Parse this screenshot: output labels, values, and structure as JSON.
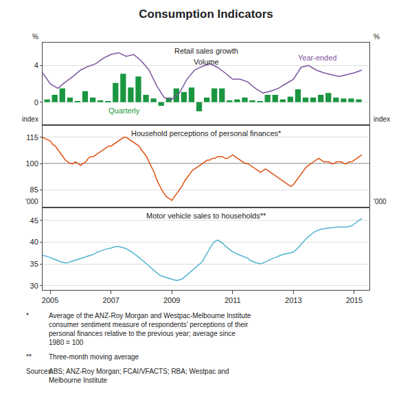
{
  "title": "Consumption Indicators",
  "annotations": [
    {
      "label": "*",
      "text": "Average of the ANZ-Roy Morgan and Westpac-Melbourne Institute\nconsumer sentiment measure of respondents’ perceptions of their\npersonal finances relative to the previous year; average since\n1980 = 100"
    },
    {
      "label": "**",
      "text": "Three-month moving average"
    },
    {
      "label": "Sources:",
      "text": "ABS; ANZ-Roy Morgan; FCAI/VFACTS; RBA; Westpac and\nMelbourne Institute"
    }
  ],
  "chart_data": [
    {
      "type": "bar",
      "title": "Retail sales growth",
      "subtitle": "Volume",
      "ylabel": "%",
      "y2label": "%",
      "xlim": [
        2004.75,
        2015.5
      ],
      "ylim": [
        -2.5,
        6.5
      ],
      "yticks": [
        0,
        4
      ],
      "y2lim": [
        -2.5,
        6.5
      ],
      "y2ticks": [
        0,
        4
      ],
      "grid": true,
      "tick_labels": "y",
      "series": [
        {
          "name": "Quarterly",
          "type": "bar",
          "color": "#1A9641",
          "x": [
            2004.9,
            2005.15,
            2005.4,
            2005.65,
            2005.9,
            2006.15,
            2006.4,
            2006.65,
            2006.9,
            2007.15,
            2007.4,
            2007.65,
            2007.9,
            2008.15,
            2008.4,
            2008.65,
            2008.9,
            2009.15,
            2009.4,
            2009.65,
            2009.9,
            2010.15,
            2010.4,
            2010.65,
            2010.9,
            2011.15,
            2011.4,
            2011.65,
            2011.9,
            2012.15,
            2012.4,
            2012.65,
            2012.9,
            2013.15,
            2013.4,
            2013.65,
            2013.9,
            2014.15,
            2014.4,
            2014.65,
            2014.9,
            2015.15
          ],
          "values": [
            0.3,
            0.8,
            1.5,
            0.5,
            0.1,
            1.2,
            0.5,
            0.2,
            0.1,
            2.1,
            3.1,
            1.6,
            2.8,
            0.8,
            0.4,
            -0.4,
            0.5,
            1.5,
            1.1,
            1.6,
            -1.0,
            0.5,
            1.5,
            1.5,
            0.2,
            0.3,
            0.5,
            0.2,
            0.1,
            0.8,
            0.8,
            0.3,
            0.6,
            1.4,
            0.5,
            0.5,
            0.8,
            1.0,
            0.5,
            0.4,
            0.4,
            0.3
          ]
        },
        {
          "name": "Year-ended",
          "type": "line",
          "color": "#7B54A0",
          "x": [
            2004.75,
            2005.0,
            2005.25,
            2005.5,
            2005.75,
            2006.0,
            2006.25,
            2006.5,
            2006.75,
            2007.0,
            2007.25,
            2007.5,
            2007.75,
            2008.0,
            2008.25,
            2008.5,
            2008.75,
            2009.0,
            2009.25,
            2009.5,
            2009.75,
            2010.0,
            2010.25,
            2010.5,
            2010.75,
            2011.0,
            2011.25,
            2011.5,
            2011.75,
            2012.0,
            2012.25,
            2012.5,
            2012.75,
            2013.0,
            2013.25,
            2013.5,
            2013.75,
            2014.0,
            2014.25,
            2014.5,
            2014.75,
            2015.0,
            2015.25
          ],
          "values": [
            3.2,
            2.0,
            1.5,
            2.2,
            2.8,
            3.5,
            3.9,
            4.2,
            4.8,
            5.2,
            5.4,
            5.0,
            5.2,
            4.5,
            3.5,
            1.8,
            0.5,
            0.3,
            1.0,
            2.5,
            3.5,
            3.9,
            4.2,
            3.8,
            3.2,
            2.5,
            2.5,
            2.2,
            1.5,
            1.0,
            1.2,
            1.5,
            2.0,
            2.5,
            3.8,
            4.0,
            3.5,
            3.2,
            3.0,
            2.8,
            3.0,
            3.2,
            3.5
          ]
        }
      ]
    },
    {
      "type": "line",
      "title": "Household perceptions of personal finances*",
      "ylabel": "index",
      "y2label": "index",
      "xlim": [
        2004.75,
        2015.5
      ],
      "ylim": [
        75,
        122
      ],
      "yticks": [
        85,
        100,
        115
      ],
      "y2lim": [
        75,
        122
      ],
      "y2ticks": [
        85,
        100,
        115
      ],
      "grid": true,
      "tick_labels": "y",
      "reference_lines": [
        {
          "y": 100,
          "color": "#000000"
        }
      ],
      "series": [
        {
          "color": "#E05010",
          "x": [
            2004.75,
            2005.0,
            2005.08,
            2005.17,
            2005.25,
            2005.33,
            2005.42,
            2005.5,
            2005.58,
            2005.67,
            2005.75,
            2005.83,
            2005.92,
            2006.0,
            2006.08,
            2006.17,
            2006.25,
            2006.33,
            2006.42,
            2006.5,
            2006.58,
            2006.67,
            2006.75,
            2006.83,
            2006.92,
            2007.0,
            2007.08,
            2007.17,
            2007.25,
            2007.33,
            2007.42,
            2007.5,
            2007.58,
            2007.67,
            2007.75,
            2007.83,
            2007.92,
            2008.0,
            2008.08,
            2008.17,
            2008.25,
            2008.33,
            2008.42,
            2008.5,
            2008.58,
            2008.67,
            2008.75,
            2008.83,
            2008.92,
            2009.0,
            2009.08,
            2009.17,
            2009.25,
            2009.33,
            2009.42,
            2009.5,
            2009.58,
            2009.67,
            2009.75,
            2009.83,
            2009.92,
            2010.0,
            2010.08,
            2010.17,
            2010.25,
            2010.33,
            2010.42,
            2010.5,
            2010.58,
            2010.67,
            2010.75,
            2010.83,
            2010.92,
            2011.0,
            2011.08,
            2011.17,
            2011.25,
            2011.33,
            2011.42,
            2011.5,
            2011.58,
            2011.67,
            2011.75,
            2011.83,
            2011.92,
            2012.0,
            2012.08,
            2012.17,
            2012.25,
            2012.33,
            2012.42,
            2012.5,
            2012.58,
            2012.67,
            2012.75,
            2012.83,
            2012.92,
            2013.0,
            2013.08,
            2013.17,
            2013.25,
            2013.33,
            2013.42,
            2013.5,
            2013.58,
            2013.67,
            2013.75,
            2013.83,
            2013.92,
            2014.0,
            2014.08,
            2014.17,
            2014.25,
            2014.33,
            2014.42,
            2014.5,
            2014.58,
            2014.67,
            2014.75,
            2014.83,
            2014.92,
            2015.0,
            2015.08,
            2015.17,
            2015.25
          ],
          "values": [
            115,
            113,
            111,
            110,
            108,
            106,
            104,
            102,
            101,
            100,
            100,
            101,
            100,
            99,
            100,
            101,
            103,
            104,
            104,
            105,
            106,
            107,
            108,
            109,
            110,
            110,
            111,
            112,
            113,
            114,
            115,
            115,
            114,
            113,
            112,
            111,
            110,
            108,
            106,
            104,
            101,
            98,
            95,
            91,
            88,
            85,
            83,
            81,
            80,
            79,
            81,
            83,
            85,
            87,
            90,
            92,
            94,
            96,
            97,
            98,
            99,
            100,
            101,
            102,
            102,
            103,
            103,
            104,
            104,
            104,
            103,
            103,
            104,
            105,
            104,
            103,
            102,
            101,
            100,
            100,
            99,
            98,
            97,
            96,
            95,
            96,
            97,
            96,
            95,
            94,
            93,
            92,
            91,
            90,
            89,
            88,
            87,
            88,
            90,
            92,
            94,
            96,
            98,
            99,
            100,
            101,
            102,
            103,
            102,
            101,
            101,
            101,
            100,
            100,
            101,
            101,
            101,
            100,
            100,
            101,
            101,
            102,
            103,
            104,
            105
          ]
        }
      ]
    },
    {
      "type": "line",
      "title": "Motor vehicle sales to households**",
      "ylabel": "'000",
      "y2label": "'000",
      "xlim": [
        2004.75,
        2015.5
      ],
      "xticks": [
        2005,
        2007,
        2009,
        2011,
        2013,
        2015
      ],
      "ylim": [
        29,
        48
      ],
      "yticks": [
        30,
        35,
        40,
        45
      ],
      "y2lim": [
        29,
        48
      ],
      "y2ticks": [
        30,
        35,
        40,
        45
      ],
      "grid": true,
      "series": [
        {
          "color": "#4EB3D3",
          "x": [
            2004.75,
            2005.0,
            2005.08,
            2005.17,
            2005.25,
            2005.33,
            2005.42,
            2005.5,
            2005.58,
            2005.67,
            2005.75,
            2005.83,
            2005.92,
            2006.0,
            2006.08,
            2006.17,
            2006.25,
            2006.33,
            2006.42,
            2006.5,
            2006.58,
            2006.67,
            2006.75,
            2006.83,
            2006.92,
            2007.0,
            2007.08,
            2007.17,
            2007.25,
            2007.33,
            2007.42,
            2007.5,
            2007.58,
            2007.67,
            2007.75,
            2007.83,
            2007.92,
            2008.0,
            2008.08,
            2008.17,
            2008.25,
            2008.33,
            2008.42,
            2008.5,
            2008.58,
            2008.67,
            2008.75,
            2008.83,
            2008.92,
            2009.0,
            2009.08,
            2009.17,
            2009.25,
            2009.33,
            2009.42,
            2009.5,
            2009.58,
            2009.67,
            2009.75,
            2009.83,
            2009.92,
            2010.0,
            2010.08,
            2010.17,
            2010.25,
            2010.33,
            2010.42,
            2010.5,
            2010.58,
            2010.67,
            2010.75,
            2010.83,
            2010.92,
            2011.0,
            2011.08,
            2011.17,
            2011.25,
            2011.33,
            2011.42,
            2011.5,
            2011.58,
            2011.67,
            2011.75,
            2011.83,
            2011.92,
            2012.0,
            2012.08,
            2012.17,
            2012.25,
            2012.33,
            2012.42,
            2012.5,
            2012.58,
            2012.67,
            2012.75,
            2012.83,
            2012.92,
            2013.0,
            2013.08,
            2013.17,
            2013.25,
            2013.33,
            2013.42,
            2013.5,
            2013.58,
            2013.67,
            2013.75,
            2013.83,
            2013.92,
            2014.0,
            2014.08,
            2014.17,
            2014.25,
            2014.33,
            2014.42,
            2014.5,
            2014.58,
            2014.67,
            2014.75,
            2014.83,
            2014.92,
            2015.0,
            2015.08,
            2015.17,
            2015.25
          ],
          "values": [
            37.0,
            36.5,
            36.2,
            36.0,
            35.8,
            35.5,
            35.3,
            35.2,
            35.3,
            35.5,
            35.6,
            35.8,
            36.0,
            36.2,
            36.4,
            36.6,
            36.8,
            37.0,
            37.2,
            37.5,
            37.8,
            38.0,
            38.2,
            38.4,
            38.5,
            38.7,
            38.9,
            39.0,
            39.0,
            38.9,
            38.7,
            38.5,
            38.2,
            37.8,
            37.4,
            37.0,
            36.5,
            36.0,
            35.5,
            35.0,
            34.5,
            34.0,
            33.5,
            33.0,
            32.5,
            32.2,
            32.0,
            31.8,
            31.7,
            31.5,
            31.3,
            31.2,
            31.3,
            31.5,
            32.0,
            32.5,
            33.0,
            33.5,
            34.0,
            34.5,
            35.0,
            35.5,
            36.5,
            37.5,
            38.5,
            39.5,
            40.2,
            40.5,
            40.2,
            39.8,
            39.2,
            38.7,
            38.2,
            37.8,
            37.5,
            37.2,
            37.0,
            36.8,
            36.5,
            36.3,
            35.8,
            35.5,
            35.3,
            35.2,
            35.0,
            35.2,
            35.5,
            35.8,
            36.0,
            36.3,
            36.5,
            36.8,
            37.0,
            37.2,
            37.3,
            37.4,
            37.5,
            37.7,
            38.2,
            38.8,
            39.5,
            40.2,
            40.8,
            41.3,
            41.8,
            42.3,
            42.6,
            42.8,
            43.0,
            43.1,
            43.2,
            43.3,
            43.4,
            43.4,
            43.5,
            43.5,
            43.5,
            43.4,
            43.5,
            43.6,
            43.8,
            44.2,
            44.6,
            45.0,
            45.5
          ]
        }
      ]
    }
  ]
}
